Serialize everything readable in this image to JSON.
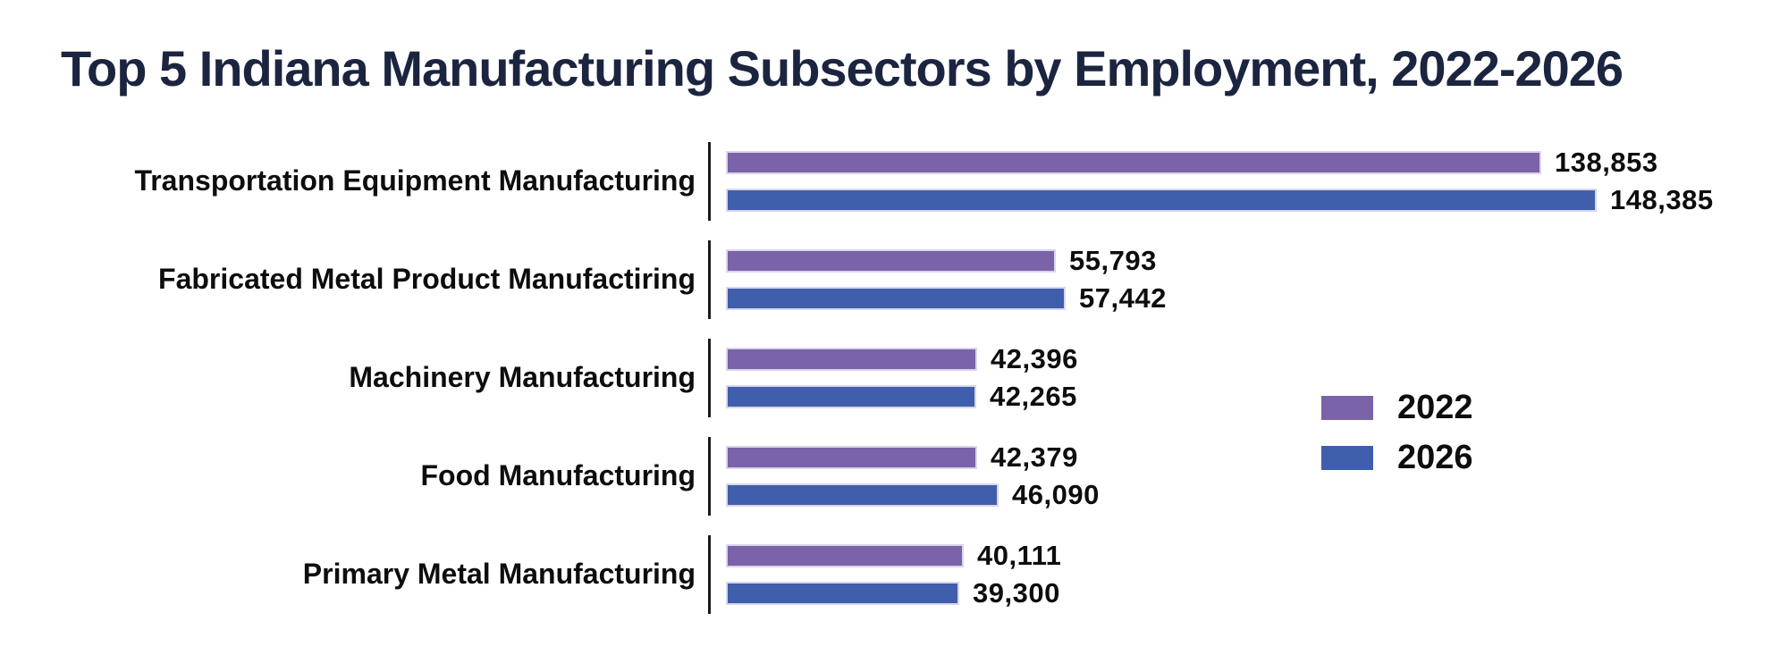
{
  "title": "Top 5 Indiana Manufacturing Subsectors by Employment, 2022-2026",
  "colors": {
    "background": "#FFFFFF",
    "title_navy": "#1B2540",
    "label_black": "#0D0D0D",
    "axis_tick": "#1A1A1A",
    "bar_border": "#D9D5EC",
    "purple_2022": "#7A63A8",
    "blue_2026": "#3F5EAC"
  },
  "chart_data": {
    "type": "bar",
    "orientation": "horizontal",
    "title": "Top 5 Indiana Manufacturing Subsectors by Employment, 2022-2026",
    "categories": [
      "Transportation Equipment Manufacturing",
      "Fabricated Metal Product Manufactiring",
      "Machinery Manufacturing",
      "Food Manufacturing",
      "Primary Metal Manufacturing"
    ],
    "series": [
      {
        "name": "2022",
        "color": "#7A63A8",
        "values": [
          138853,
          55793,
          42396,
          42379,
          40111
        ],
        "labels": [
          "138,853",
          "55,793",
          "42,396",
          "42,379",
          "40,111"
        ]
      },
      {
        "name": "2026",
        "color": "#3F5EAC",
        "values": [
          148385,
          57442,
          42265,
          46090,
          39300
        ],
        "labels": [
          "148,385",
          "57,442",
          "42,265",
          "46,090",
          "39,300"
        ]
      }
    ],
    "xlim": [
      0,
      148385
    ],
    "grid": false,
    "axis_line": "per-row-vertical-tick",
    "value_labels": "end-of-bar",
    "legend_position": "center-right"
  }
}
